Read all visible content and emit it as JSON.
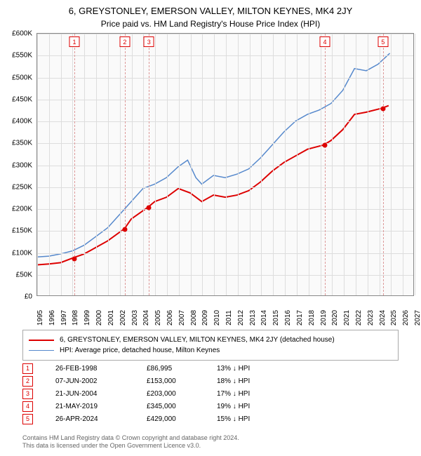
{
  "title_main": "6, GREYSTONLEY, EMERSON VALLEY, MILTON KEYNES, MK4 2JY",
  "title_sub": "Price paid vs. HM Land Registry's House Price Index (HPI)",
  "chart": {
    "type": "line",
    "background_color": "#fafafa",
    "grid_color": "#dddddd",
    "border_color": "#888888",
    "ylim": [
      0,
      600000
    ],
    "ytick_step": 50000,
    "yticks": [
      "£0",
      "£50K",
      "£100K",
      "£150K",
      "£200K",
      "£250K",
      "£300K",
      "£350K",
      "£400K",
      "£450K",
      "£500K",
      "£550K",
      "£600K"
    ],
    "xlim": [
      1995,
      2027
    ],
    "xticks": [
      1995,
      1996,
      1997,
      1998,
      1999,
      2000,
      2001,
      2002,
      2003,
      2004,
      2005,
      2006,
      2007,
      2008,
      2009,
      2010,
      2011,
      2012,
      2013,
      2014,
      2015,
      2016,
      2017,
      2018,
      2019,
      2020,
      2021,
      2022,
      2023,
      2024,
      2025,
      2026,
      2027
    ],
    "series": [
      {
        "name": "property",
        "label": "6, GREYSTONLEY, EMERSON VALLEY, MILTON KEYNES, MK4 2JY (detached house)",
        "color": "#dd0000",
        "line_width": 2,
        "data": [
          [
            1995.0,
            70000
          ],
          [
            1996.0,
            72000
          ],
          [
            1997.0,
            75000
          ],
          [
            1998.15,
            86995
          ],
          [
            1999.0,
            95000
          ],
          [
            2000.0,
            110000
          ],
          [
            2001.0,
            125000
          ],
          [
            2002.43,
            153000
          ],
          [
            2003.0,
            175000
          ],
          [
            2004.47,
            203000
          ],
          [
            2005.0,
            215000
          ],
          [
            2006.0,
            225000
          ],
          [
            2007.0,
            245000
          ],
          [
            2008.0,
            235000
          ],
          [
            2009.0,
            215000
          ],
          [
            2010.0,
            230000
          ],
          [
            2011.0,
            225000
          ],
          [
            2012.0,
            230000
          ],
          [
            2013.0,
            240000
          ],
          [
            2014.0,
            260000
          ],
          [
            2015.0,
            285000
          ],
          [
            2016.0,
            305000
          ],
          [
            2017.0,
            320000
          ],
          [
            2018.0,
            335000
          ],
          [
            2019.39,
            345000
          ],
          [
            2020.0,
            355000
          ],
          [
            2021.0,
            380000
          ],
          [
            2022.0,
            415000
          ],
          [
            2023.0,
            420000
          ],
          [
            2024.32,
            429000
          ],
          [
            2024.9,
            435000
          ]
        ]
      },
      {
        "name": "hpi",
        "label": "HPI: Average price, detached house, Milton Keynes",
        "color": "#5588cc",
        "line_width": 1.5,
        "data": [
          [
            1995.0,
            88000
          ],
          [
            1996.0,
            90000
          ],
          [
            1997.0,
            95000
          ],
          [
            1998.0,
            102000
          ],
          [
            1999.0,
            115000
          ],
          [
            2000.0,
            135000
          ],
          [
            2001.0,
            155000
          ],
          [
            2002.0,
            185000
          ],
          [
            2003.0,
            215000
          ],
          [
            2004.0,
            245000
          ],
          [
            2005.0,
            255000
          ],
          [
            2006.0,
            270000
          ],
          [
            2007.0,
            295000
          ],
          [
            2007.8,
            310000
          ],
          [
            2008.5,
            270000
          ],
          [
            2009.0,
            255000
          ],
          [
            2010.0,
            275000
          ],
          [
            2011.0,
            270000
          ],
          [
            2012.0,
            278000
          ],
          [
            2013.0,
            290000
          ],
          [
            2014.0,
            315000
          ],
          [
            2015.0,
            345000
          ],
          [
            2016.0,
            375000
          ],
          [
            2017.0,
            400000
          ],
          [
            2018.0,
            415000
          ],
          [
            2019.0,
            425000
          ],
          [
            2020.0,
            440000
          ],
          [
            2021.0,
            470000
          ],
          [
            2022.0,
            520000
          ],
          [
            2023.0,
            515000
          ],
          [
            2024.0,
            530000
          ],
          [
            2025.0,
            555000
          ]
        ]
      }
    ],
    "events": [
      {
        "n": "1",
        "x": 1998.15,
        "price_y": 86995
      },
      {
        "n": "2",
        "x": 2002.43,
        "price_y": 153000
      },
      {
        "n": "3",
        "x": 2004.47,
        "price_y": 203000
      },
      {
        "n": "4",
        "x": 2019.39,
        "price_y": 345000
      },
      {
        "n": "5",
        "x": 2024.32,
        "price_y": 429000
      }
    ],
    "event_marker_line_color": "#dd9999",
    "event_marker_box_border": "#dd0000",
    "point_marker_color": "#dd0000"
  },
  "legend_items": [
    {
      "color": "#dd0000",
      "width": 2,
      "label_bind": "chart.series.0.label"
    },
    {
      "color": "#5588cc",
      "width": 1.5,
      "label_bind": "chart.series.1.label"
    }
  ],
  "events_table": [
    {
      "n": "1",
      "date": "26-FEB-1998",
      "price": "£86,995",
      "diff": "13% ↓ HPI"
    },
    {
      "n": "2",
      "date": "07-JUN-2002",
      "price": "£153,000",
      "diff": "18% ↓ HPI"
    },
    {
      "n": "3",
      "date": "21-JUN-2004",
      "price": "£203,000",
      "diff": "17% ↓ HPI"
    },
    {
      "n": "4",
      "date": "21-MAY-2019",
      "price": "£345,000",
      "diff": "19% ↓ HPI"
    },
    {
      "n": "5",
      "date": "26-APR-2024",
      "price": "£429,000",
      "diff": "15% ↓ HPI"
    }
  ],
  "footer_line1": "Contains HM Land Registry data © Crown copyright and database right 2024.",
  "footer_line2": "This data is licensed under the Open Government Licence v3.0."
}
